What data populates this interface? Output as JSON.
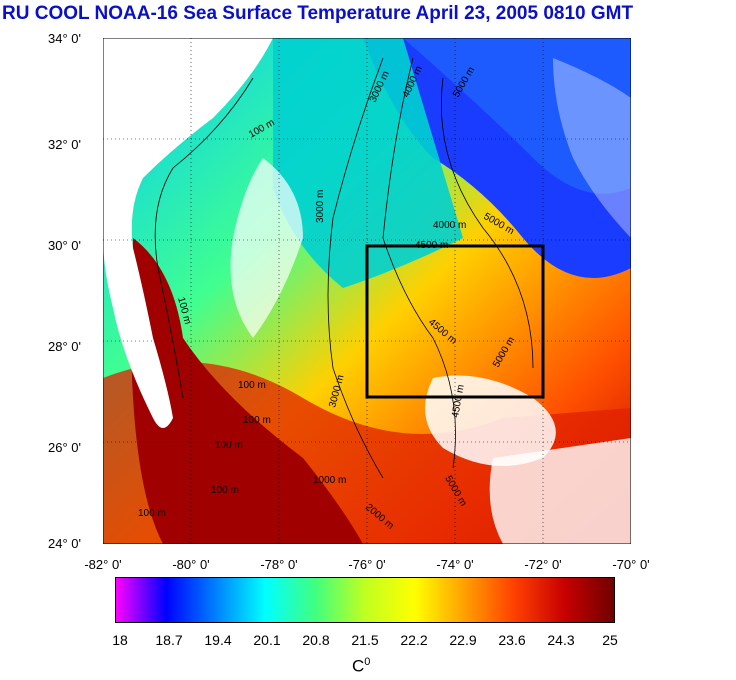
{
  "title": "RU COOL  NOAA-16 Sea Surface Temperature April 23, 2005 0810 GMT",
  "lat_labels": [
    "34° 0'",
    "32° 0'",
    "30° 0'",
    "28° 0'",
    "26° 0'",
    "24° 0'"
  ],
  "lon_labels": [
    "-82° 0'",
    "-80° 0'",
    "-78° 0'",
    "-76° 0'",
    "-74° 0'",
    "-72° 0'",
    "-70° 0'"
  ],
  "contour_labels": [
    "100 m",
    "100 m",
    "100 m",
    "100 m",
    "100 m",
    "100 m",
    "100 m",
    "1000 m",
    "2000 m",
    "3000 m",
    "3000 m",
    "3000 m",
    "4000 m",
    "4000 m",
    "4500 m",
    "4500 m",
    "4500 m",
    "5000 m",
    "5000 m",
    "5000 m",
    "5000 m"
  ],
  "colorbar": {
    "labels": [
      "18",
      "18.7",
      "19.4",
      "20.1",
      "20.8",
      "21.5",
      "22.2",
      "22.9",
      "23.6",
      "24.3",
      "25"
    ],
    "unit": "C",
    "unit_sup": "0",
    "colors": [
      "#ff00ff",
      "#0000ff",
      "#0080ff",
      "#00ffff",
      "#40ff80",
      "#c0ff20",
      "#ffff00",
      "#ffa000",
      "#ff4000",
      "#c80000",
      "#700000"
    ]
  },
  "colors": {
    "title": "#0a10c8",
    "land": "#ffffff",
    "cloud": "#ffffff",
    "box": "#000000"
  }
}
